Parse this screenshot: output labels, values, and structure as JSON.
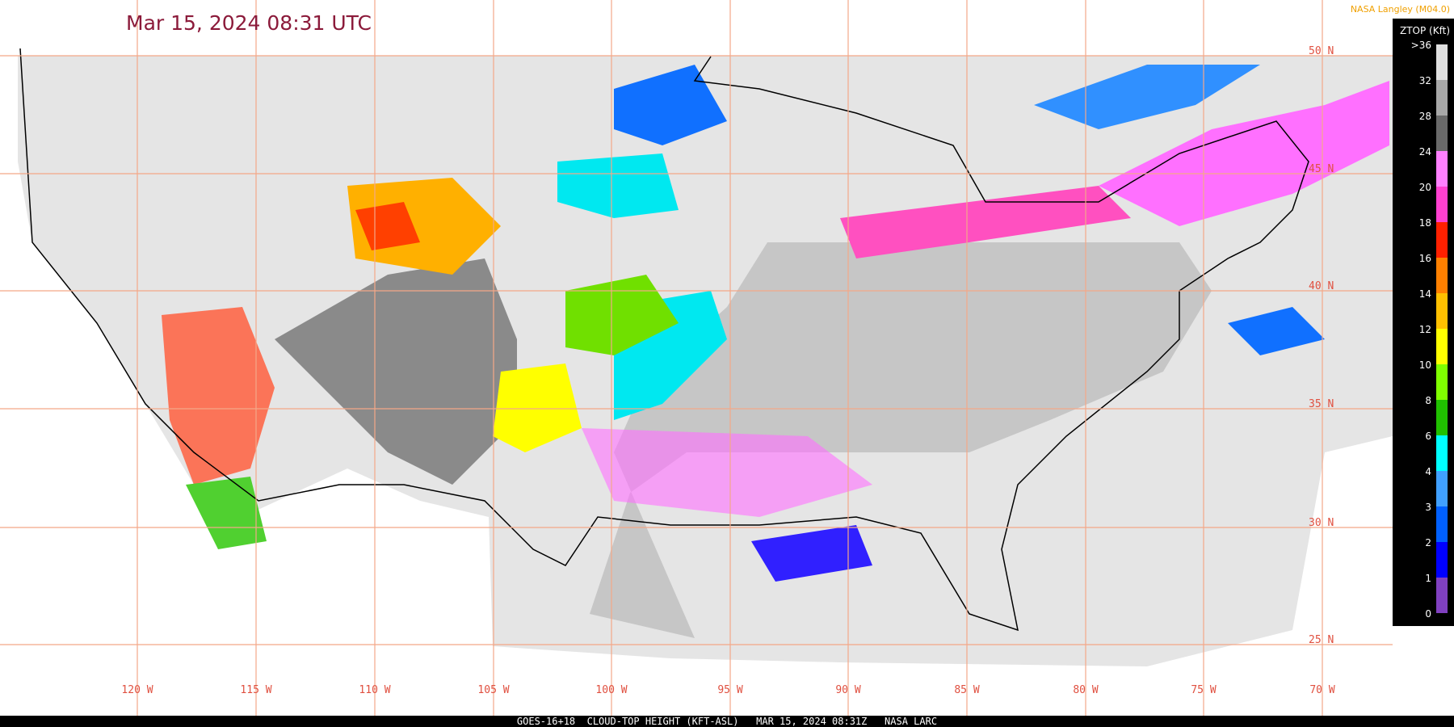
{
  "header": {
    "title": "Mar 15, 2024 08:31 UTC",
    "credit": "NASA Langley (M04.0)"
  },
  "latitude_labels": [
    "50 N",
    "45 N",
    "40 N",
    "35 N",
    "30 N",
    "25 N"
  ],
  "longitude_labels": [
    "120 W",
    "115 W",
    "110 W",
    "105 W",
    "100 W",
    "95 W",
    "90 W",
    "85 W",
    "80 W",
    "75 W",
    "70 W"
  ],
  "legend": {
    "title": "ZTOP (Kft)",
    "labels": [
      ">36",
      "32",
      "28",
      "24",
      "20",
      "18",
      "16",
      "14",
      "12",
      "10",
      "8",
      "6",
      "4",
      "3",
      "2",
      "1",
      "0"
    ]
  },
  "footer": "GOES-16+18  CLOUD-TOP HEIGHT (KFT-ASL)   MAR 15, 2024 08:31Z   NASA LARC"
}
